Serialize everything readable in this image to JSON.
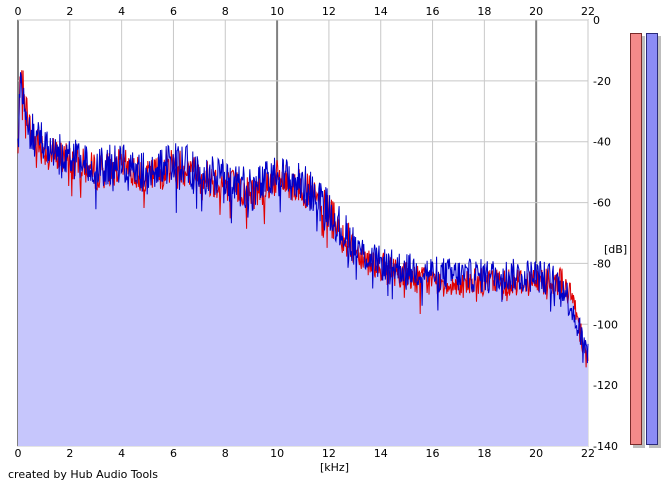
{
  "chart_data": {
    "type": "line",
    "xlabel": "[kHz]",
    "ylabel": "[dB]",
    "xlim": [
      0,
      22
    ],
    "ylim": [
      -140,
      0
    ],
    "x_ticks": [
      0,
      2,
      4,
      6,
      8,
      10,
      12,
      14,
      16,
      18,
      20,
      22
    ],
    "y_ticks": [
      0,
      -20,
      -40,
      -60,
      -80,
      -100,
      -120,
      -140
    ],
    "grid": true,
    "series": [
      {
        "color": "#e00000",
        "x": [
          0,
          0.1,
          0.2,
          0.5,
          1,
          1.5,
          2,
          3,
          4,
          5,
          6,
          7,
          8,
          9,
          10,
          11,
          11.5,
          12,
          12.5,
          13,
          13.5,
          14,
          15,
          16,
          17,
          18,
          19,
          20,
          20.5,
          21,
          21.5,
          22
        ],
        "y": [
          -45,
          -15,
          -22,
          -38,
          -42,
          -45,
          -46,
          -50,
          -48,
          -52,
          -47,
          -51,
          -54,
          -57,
          -52,
          -55,
          -59,
          -63,
          -70,
          -75,
          -79,
          -81,
          -84,
          -86,
          -87,
          -86,
          -86,
          -86,
          -85,
          -86,
          -94,
          -113
        ]
      },
      {
        "color": "#0000c8",
        "x": [
          0,
          0.1,
          0.2,
          0.5,
          1,
          1.5,
          2,
          3,
          4,
          5,
          6,
          7,
          8,
          9,
          10,
          11,
          11.5,
          12,
          12.5,
          13,
          13.5,
          14,
          15,
          16,
          17,
          18,
          19,
          20,
          20.5,
          21,
          21.5,
          22
        ],
        "y": [
          -45,
          -14,
          -21,
          -37,
          -41,
          -44,
          -45,
          -49,
          -47,
          -51,
          -46,
          -50,
          -53,
          -56,
          -51,
          -54,
          -58,
          -62,
          -69,
          -74,
          -78,
          -80,
          -82,
          -83,
          -84,
          -84,
          -84,
          -84,
          -85,
          -87,
          -97,
          -112
        ]
      }
    ]
  },
  "footer": {
    "credit": "created by Hub Audio Tools"
  },
  "meters": {
    "left_color": "#f48a8a",
    "right_color": "#8c8cf6"
  }
}
